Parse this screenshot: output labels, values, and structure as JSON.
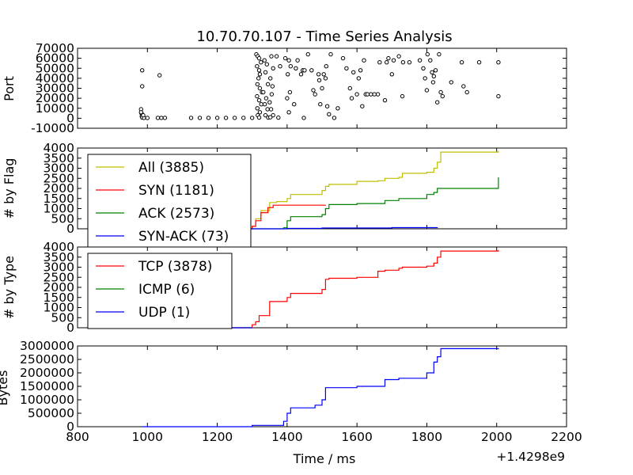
{
  "chart_data": [
    {
      "type": "scatter",
      "title": "10.70.70.107 - Time Series Analysis",
      "ylabel": "Port",
      "xlim": [
        800,
        2200
      ],
      "ylim": [
        -10000,
        70000
      ],
      "yticks": [
        "-10000",
        "0",
        "10000",
        "20000",
        "30000",
        "40000",
        "50000",
        "60000",
        "70000"
      ],
      "marker_fill": "#ffffff",
      "marker_edge": "#000000",
      "points": [
        [
          985,
          48000
        ],
        [
          985,
          32000
        ],
        [
          982,
          9000
        ],
        [
          983,
          5000
        ],
        [
          984,
          2000
        ],
        [
          985,
          700
        ],
        [
          990,
          400
        ],
        [
          982,
          6000
        ],
        [
          988,
          3000
        ],
        [
          1035,
          43000
        ],
        [
          1030,
          400
        ],
        [
          1040,
          400
        ],
        [
          1050,
          400
        ],
        [
          1000,
          300
        ],
        [
          1125,
          400
        ],
        [
          1150,
          400
        ],
        [
          1175,
          400
        ],
        [
          1200,
          400
        ],
        [
          1225,
          400
        ],
        [
          1250,
          400
        ],
        [
          1275,
          400
        ],
        [
          1300,
          400
        ],
        [
          1312,
          64000
        ],
        [
          1316,
          62000
        ],
        [
          1320,
          60000
        ],
        [
          1325,
          56000
        ],
        [
          1314,
          52000
        ],
        [
          1320,
          48000
        ],
        [
          1322,
          44000
        ],
        [
          1318,
          40000
        ],
        [
          1315,
          34000
        ],
        [
          1322,
          30000
        ],
        [
          1328,
          26000
        ],
        [
          1314,
          22000
        ],
        [
          1320,
          18000
        ],
        [
          1326,
          14000
        ],
        [
          1315,
          10000
        ],
        [
          1322,
          6000
        ],
        [
          1316,
          3000
        ],
        [
          1320,
          700
        ],
        [
          1335,
          58000
        ],
        [
          1342,
          54000
        ],
        [
          1338,
          46000
        ],
        [
          1345,
          34000
        ],
        [
          1332,
          26000
        ],
        [
          1340,
          20000
        ],
        [
          1336,
          14000
        ],
        [
          1344,
          9000
        ],
        [
          1338,
          3000
        ],
        [
          1346,
          700
        ],
        [
          1355,
          62000
        ],
        [
          1360,
          50000
        ],
        [
          1352,
          40000
        ],
        [
          1358,
          32000
        ],
        [
          1356,
          24000
        ],
        [
          1350,
          16000
        ],
        [
          1354,
          9000
        ],
        [
          1360,
          3000
        ],
        [
          1375,
          600
        ],
        [
          1352,
          1000
        ],
        [
          1370,
          62000
        ],
        [
          1380,
          52000
        ],
        [
          1395,
          60000
        ],
        [
          1405,
          58000
        ],
        [
          1410,
          52000
        ],
        [
          1402,
          44000
        ],
        [
          1408,
          26000
        ],
        [
          1400,
          20000
        ],
        [
          1420,
          14000
        ],
        [
          1405,
          6000
        ],
        [
          1425,
          50000
        ],
        [
          1430,
          58000
        ],
        [
          1440,
          44000
        ],
        [
          1445,
          48000
        ],
        [
          1450,
          48000
        ],
        [
          1448,
          400
        ],
        [
          1460,
          64000
        ],
        [
          1470,
          48000
        ],
        [
          1490,
          44000
        ],
        [
          1492,
          38000
        ],
        [
          1495,
          14000
        ],
        [
          1475,
          28000
        ],
        [
          1480,
          24000
        ],
        [
          1500,
          30000
        ],
        [
          1505,
          44000
        ],
        [
          1510,
          40000
        ],
        [
          1512,
          52000
        ],
        [
          1515,
          12000
        ],
        [
          1520,
          4000
        ],
        [
          1525,
          64000
        ],
        [
          1535,
          400
        ],
        [
          1545,
          10000
        ],
        [
          1560,
          60000
        ],
        [
          1570,
          50000
        ],
        [
          1580,
          30000
        ],
        [
          1585,
          20000
        ],
        [
          1590,
          46000
        ],
        [
          1600,
          24000
        ],
        [
          1605,
          40000
        ],
        [
          1610,
          48000
        ],
        [
          1615,
          12000
        ],
        [
          1620,
          58000
        ],
        [
          1625,
          24000
        ],
        [
          1630,
          24000
        ],
        [
          1640,
          24000
        ],
        [
          1650,
          24000
        ],
        [
          1660,
          24000
        ],
        [
          1665,
          56000
        ],
        [
          1680,
          18000
        ],
        [
          1685,
          56000
        ],
        [
          1690,
          60000
        ],
        [
          1700,
          44000
        ],
        [
          1705,
          58000
        ],
        [
          1720,
          62000
        ],
        [
          1730,
          22000
        ],
        [
          1732,
          56000
        ],
        [
          1750,
          56000
        ],
        [
          1780,
          58000
        ],
        [
          1790,
          50000
        ],
        [
          1795,
          40000
        ],
        [
          1800,
          28000
        ],
        [
          1802,
          64000
        ],
        [
          1810,
          58000
        ],
        [
          1815,
          46000
        ],
        [
          1818,
          36000
        ],
        [
          1820,
          42000
        ],
        [
          1825,
          48000
        ],
        [
          1830,
          16000
        ],
        [
          1835,
          64000
        ],
        [
          1840,
          26000
        ],
        [
          1845,
          22000
        ],
        [
          1870,
          36000
        ],
        [
          1900,
          56000
        ],
        [
          1905,
          32000
        ],
        [
          1915,
          26000
        ],
        [
          1950,
          56000
        ],
        [
          2005,
          56000
        ],
        [
          2005,
          22000
        ]
      ]
    },
    {
      "type": "line",
      "ylabel": "# by Flag",
      "xlim": [
        800,
        2200
      ],
      "ylim": [
        0,
        4000
      ],
      "yticks": [
        "0",
        "500",
        "1000",
        "1500",
        "2000",
        "2500",
        "3000",
        "3500",
        "4000"
      ],
      "series": [
        {
          "name": "All (3885)",
          "color": "#bfbf00",
          "x": [
            985,
            1300,
            1310,
            1325,
            1350,
            1370,
            1400,
            1410,
            1500,
            1510,
            1520,
            1600,
            1660,
            1680,
            1720,
            1730,
            1800,
            1820,
            1830,
            1840,
            2005
          ],
          "y": [
            0,
            120,
            500,
            900,
            1300,
            1350,
            1500,
            1700,
            1900,
            2100,
            2200,
            2350,
            2380,
            2500,
            2550,
            2750,
            2800,
            3000,
            3300,
            3800,
            3860
          ]
        },
        {
          "name": "SYN (1181)",
          "color": "#ff0000",
          "x": [
            985,
            1300,
            1310,
            1325,
            1345,
            1360,
            1510
          ],
          "y": [
            0,
            120,
            400,
            800,
            1050,
            1170,
            1180
          ]
        },
        {
          "name": "ACK (2573)",
          "color": "#008000",
          "x": [
            985,
            1300,
            1390,
            1400,
            1410,
            1500,
            1510,
            1520,
            1600,
            1680,
            1720,
            1800,
            1820,
            1830,
            2005
          ],
          "y": [
            0,
            0,
            50,
            400,
            600,
            700,
            1000,
            1200,
            1250,
            1400,
            1500,
            1700,
            1800,
            2000,
            2550
          ]
        },
        {
          "name": "SYN-ACK (73)",
          "color": "#0000ff",
          "x": [
            985,
            1400,
            1500,
            1700,
            1830
          ],
          "y": [
            0,
            20,
            40,
            60,
            73
          ]
        }
      ]
    },
    {
      "type": "line",
      "ylabel": "# by Type",
      "xlim": [
        800,
        2200
      ],
      "ylim": [
        0,
        4000
      ],
      "yticks": [
        "0",
        "500",
        "1000",
        "1500",
        "2000",
        "2500",
        "3000",
        "3500",
        "4000"
      ],
      "series": [
        {
          "name": "TCP (3878)",
          "color": "#ff0000",
          "x": [
            985,
            1300,
            1310,
            1320,
            1350,
            1400,
            1410,
            1500,
            1510,
            1520,
            1600,
            1660,
            1680,
            1720,
            1730,
            1800,
            1820,
            1830,
            1840,
            2005
          ],
          "y": [
            0,
            150,
            300,
            600,
            1300,
            1500,
            1700,
            1900,
            2400,
            2450,
            2500,
            2800,
            2850,
            2950,
            3000,
            3050,
            3200,
            3500,
            3800,
            3850
          ]
        },
        {
          "name": "ICMP (6)",
          "color": "#008000",
          "x": [
            985,
            1300
          ],
          "y": [
            0,
            6
          ]
        },
        {
          "name": "UDP (1)",
          "color": "#0000ff",
          "x": [
            985,
            1300
          ],
          "y": [
            0,
            1
          ]
        }
      ]
    },
    {
      "type": "line",
      "ylabel": "Bytes",
      "xlabel": "Time / ms",
      "x_offset_label": "+1.4298e9",
      "xlim": [
        800,
        2200
      ],
      "ylim": [
        0,
        3000000
      ],
      "xticks": [
        "800",
        "1000",
        "1200",
        "1400",
        "1600",
        "1800",
        "2000",
        "2200"
      ],
      "yticks": [
        "0",
        "500000",
        "1000000",
        "1500000",
        "2000000",
        "2500000",
        "3000000"
      ],
      "series": [
        {
          "name": "",
          "color": "#0000ff",
          "x": [
            985,
            1300,
            1390,
            1400,
            1410,
            1480,
            1500,
            1510,
            1600,
            1680,
            1720,
            1800,
            1820,
            1830,
            1840,
            2005
          ],
          "y": [
            0,
            50000,
            200000,
            500000,
            700000,
            800000,
            1000000,
            1450000,
            1500000,
            1750000,
            1800000,
            2000000,
            2400000,
            2600000,
            2900000,
            2920000
          ]
        }
      ]
    }
  ]
}
